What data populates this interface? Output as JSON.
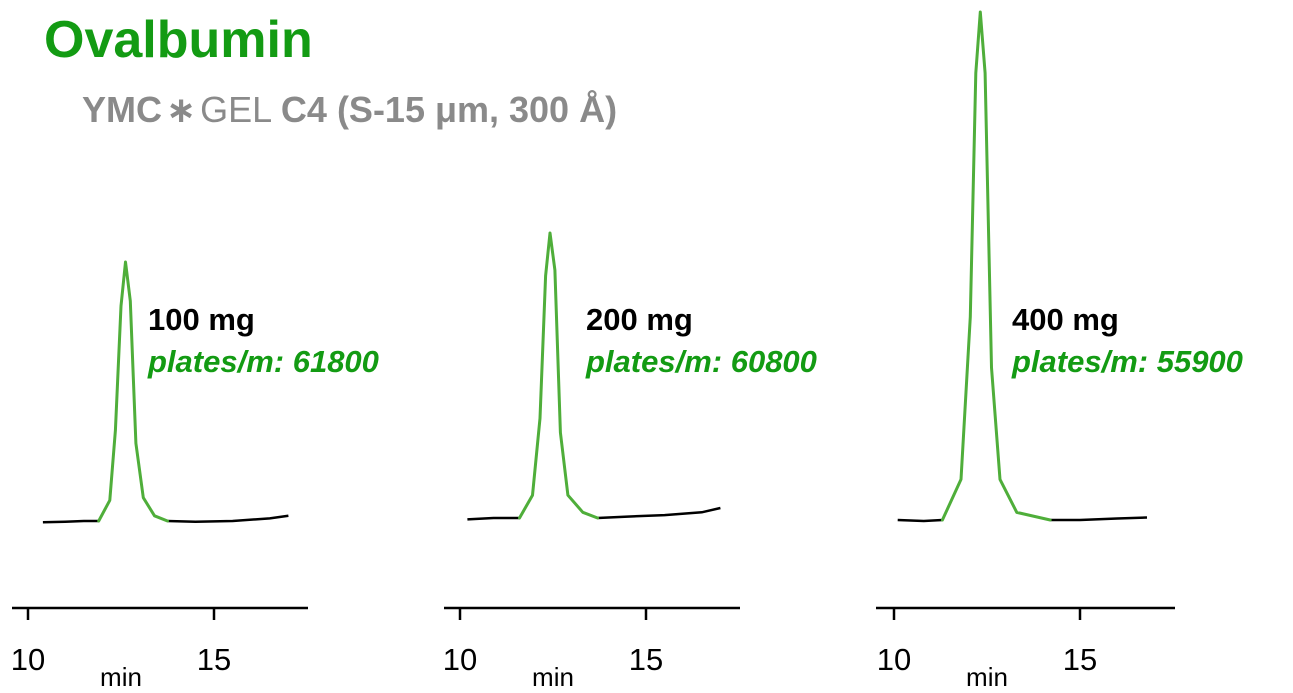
{
  "title": "Ovalbumin",
  "subtitle": {
    "part1": "YMC",
    "star": "∗",
    "part2": "GEL",
    "part3": "C4",
    "part4": "(S-15 μm, 300 Å)"
  },
  "colors": {
    "title": "#139b13",
    "peak": "#4fae3a",
    "baseline": "#000000",
    "plates_text": "#139b13",
    "subtitle": "#8a8a8a"
  },
  "chart_data": [
    {
      "type": "line",
      "title": "",
      "xlabel": "min",
      "ylabel": "",
      "xlim": [
        10,
        17.2
      ],
      "x_ticks": [
        10,
        15
      ],
      "annotations": [
        "100 mg",
        "plates/m: 61800"
      ],
      "load_label": "100 mg",
      "plates_label": "plates/m: 61800",
      "series": [
        {
          "peak_x": [
            11.9,
            12.2,
            12.35,
            12.5,
            12.62,
            12.75,
            12.9,
            13.1,
            13.4,
            13.75
          ],
          "peak_y": [
            0.0,
            0.08,
            0.35,
            0.83,
            1.0,
            0.85,
            0.3,
            0.09,
            0.02,
            0.0
          ],
          "baseline_left_x": [
            10.4,
            11.0,
            11.5,
            11.9
          ],
          "baseline_left_y": [
            -0.005,
            -0.003,
            0.0,
            0.0
          ],
          "baseline_right_x": [
            13.75,
            14.5,
            15.5,
            16.5,
            17.0
          ],
          "baseline_right_y": [
            0.0,
            -0.003,
            0.0,
            0.01,
            0.02
          ]
        }
      ]
    },
    {
      "type": "line",
      "title": "",
      "xlabel": "min",
      "ylabel": "",
      "xlim": [
        10,
        17.2
      ],
      "x_ticks": [
        10,
        15
      ],
      "annotations": [
        "200 mg",
        "plates/m: 60800"
      ],
      "load_label": "200 mg",
      "plates_label": "plates/m: 60800",
      "series": [
        {
          "peak_x": [
            11.6,
            11.95,
            12.15,
            12.3,
            12.42,
            12.55,
            12.7,
            12.9,
            13.3,
            13.7
          ],
          "peak_y": [
            0.0,
            0.08,
            0.35,
            0.85,
            1.0,
            0.87,
            0.3,
            0.08,
            0.02,
            0.0
          ],
          "baseline_left_x": [
            10.2,
            10.9,
            11.6
          ],
          "baseline_left_y": [
            -0.005,
            0.0,
            0.0
          ],
          "baseline_right_x": [
            13.7,
            14.5,
            15.5,
            16.5,
            17.0
          ],
          "baseline_right_y": [
            0.0,
            0.005,
            0.01,
            0.02,
            0.035
          ]
        }
      ]
    },
    {
      "type": "line",
      "title": "",
      "xlabel": "min",
      "ylabel": "",
      "xlim": [
        10,
        17.2
      ],
      "x_ticks": [
        10,
        15
      ],
      "annotations": [
        "400 mg",
        "plates/m: 55900"
      ],
      "load_label": "400 mg",
      "plates_label": "plates/m: 55900",
      "series": [
        {
          "peak_x": [
            11.3,
            11.8,
            12.05,
            12.2,
            12.32,
            12.45,
            12.62,
            12.85,
            13.3,
            14.2
          ],
          "peak_y": [
            0.0,
            0.08,
            0.4,
            0.88,
            1.0,
            0.88,
            0.3,
            0.08,
            0.015,
            0.0
          ],
          "baseline_left_x": [
            10.1,
            10.8,
            11.3
          ],
          "baseline_left_y": [
            0.0,
            -0.002,
            0.0
          ],
          "baseline_right_x": [
            14.2,
            15.0,
            16.0,
            16.8
          ],
          "baseline_right_y": [
            0.0,
            0.0,
            0.003,
            0.005
          ]
        }
      ]
    }
  ]
}
